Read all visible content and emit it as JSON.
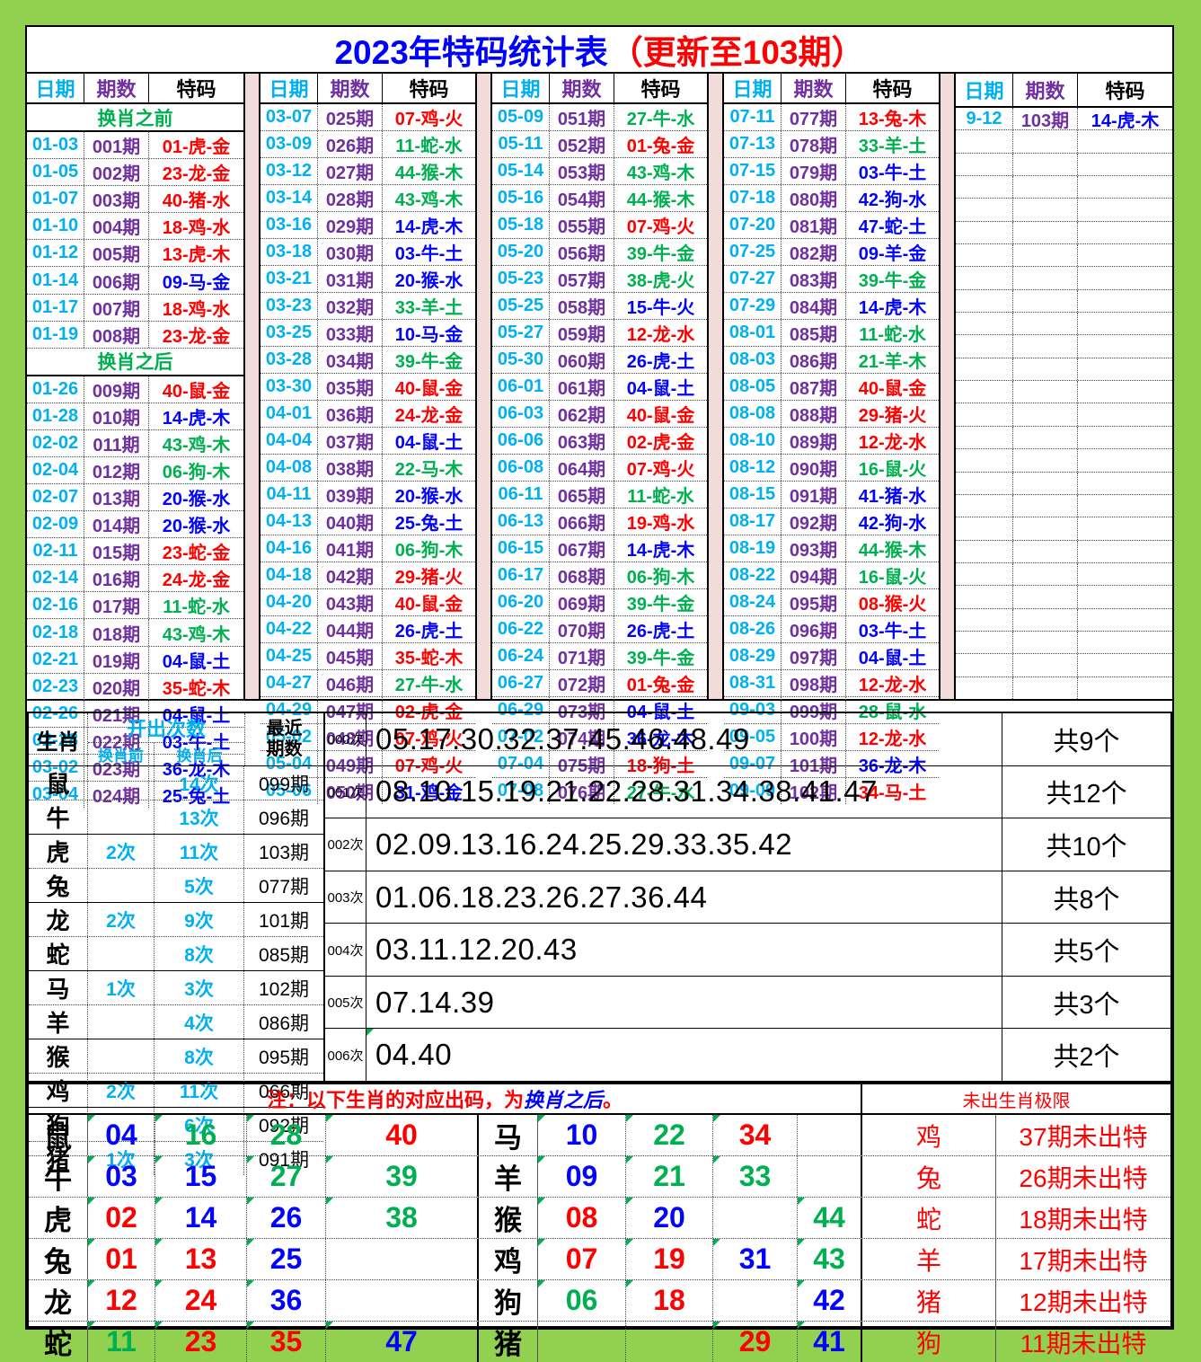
{
  "title": {
    "main": "2023年特码统计表",
    "suffix": "（更新至103期）"
  },
  "grid_header": {
    "date": "日期",
    "period": "期数",
    "code": "特码"
  },
  "colors": {
    "red": "#FF0000",
    "green": "#00B050",
    "blue": "#0202FF",
    "cyan": "#00B0F0",
    "purple": "#7030A0",
    "frame_green": "#92D050",
    "separator_pink": "#F1DCDB"
  },
  "period_tables": [
    {
      "rows": [
        {
          "banner": "换肖之前"
        },
        {
          "d": "01-03",
          "p": "001期",
          "t": "01-虎-金",
          "c": "r"
        },
        {
          "d": "01-05",
          "p": "002期",
          "t": "23-龙-金",
          "c": "r"
        },
        {
          "d": "01-07",
          "p": "003期",
          "t": "40-猪-水",
          "c": "r"
        },
        {
          "d": "01-10",
          "p": "004期",
          "t": "18-鸡-水",
          "c": "r"
        },
        {
          "d": "01-12",
          "p": "005期",
          "t": "13-虎-木",
          "c": "r"
        },
        {
          "d": "01-14",
          "p": "006期",
          "t": "09-马-金",
          "c": "b"
        },
        {
          "d": "01-17",
          "p": "007期",
          "t": "18-鸡-水",
          "c": "r"
        },
        {
          "d": "01-19",
          "p": "008期",
          "t": "23-龙-金",
          "c": "r"
        },
        {
          "banner": "换肖之后"
        },
        {
          "d": "01-26",
          "p": "009期",
          "t": "40-鼠-金",
          "c": "r"
        },
        {
          "d": "01-28",
          "p": "010期",
          "t": "14-虎-木",
          "c": "b"
        },
        {
          "d": "02-02",
          "p": "011期",
          "t": "43-鸡-木",
          "c": "g"
        },
        {
          "d": "02-04",
          "p": "012期",
          "t": "06-狗-木",
          "c": "g"
        },
        {
          "d": "02-07",
          "p": "013期",
          "t": "20-猴-水",
          "c": "b"
        },
        {
          "d": "02-09",
          "p": "014期",
          "t": "20-猴-水",
          "c": "b"
        },
        {
          "d": "02-11",
          "p": "015期",
          "t": "23-蛇-金",
          "c": "r"
        },
        {
          "d": "02-14",
          "p": "016期",
          "t": "24-龙-金",
          "c": "r"
        },
        {
          "d": "02-16",
          "p": "017期",
          "t": "11-蛇-水",
          "c": "g"
        },
        {
          "d": "02-18",
          "p": "018期",
          "t": "43-鸡-木",
          "c": "g"
        },
        {
          "d": "02-21",
          "p": "019期",
          "t": "04-鼠-土",
          "c": "b"
        },
        {
          "d": "02-23",
          "p": "020期",
          "t": "35-蛇-木",
          "c": "r"
        },
        {
          "d": "02-26",
          "p": "021期",
          "t": "04-鼠-土",
          "c": "b"
        },
        {
          "d": "02-28",
          "p": "022期",
          "t": "03-牛-土",
          "c": "b"
        },
        {
          "d": "03-02",
          "p": "023期",
          "t": "36-龙-木",
          "c": "b"
        },
        {
          "d": "03-04",
          "p": "024期",
          "t": "25-兔-土",
          "c": "b"
        }
      ]
    },
    {
      "rows": [
        {
          "d": "03-07",
          "p": "025期",
          "t": "07-鸡-火",
          "c": "r"
        },
        {
          "d": "03-09",
          "p": "026期",
          "t": "11-蛇-水",
          "c": "g"
        },
        {
          "d": "03-12",
          "p": "027期",
          "t": "44-猴-木",
          "c": "g"
        },
        {
          "d": "03-14",
          "p": "028期",
          "t": "43-鸡-木",
          "c": "g"
        },
        {
          "d": "03-16",
          "p": "029期",
          "t": "14-虎-木",
          "c": "b"
        },
        {
          "d": "03-18",
          "p": "030期",
          "t": "03-牛-土",
          "c": "b"
        },
        {
          "d": "03-21",
          "p": "031期",
          "t": "20-猴-水",
          "c": "b"
        },
        {
          "d": "03-23",
          "p": "032期",
          "t": "33-羊-土",
          "c": "g"
        },
        {
          "d": "03-25",
          "p": "033期",
          "t": "10-马-金",
          "c": "b"
        },
        {
          "d": "03-28",
          "p": "034期",
          "t": "39-牛-金",
          "c": "g"
        },
        {
          "d": "03-30",
          "p": "035期",
          "t": "40-鼠-金",
          "c": "r"
        },
        {
          "d": "04-01",
          "p": "036期",
          "t": "24-龙-金",
          "c": "r"
        },
        {
          "d": "04-04",
          "p": "037期",
          "t": "04-鼠-土",
          "c": "b"
        },
        {
          "d": "04-08",
          "p": "038期",
          "t": "22-马-木",
          "c": "g"
        },
        {
          "d": "04-11",
          "p": "039期",
          "t": "20-猴-水",
          "c": "b"
        },
        {
          "d": "04-13",
          "p": "040期",
          "t": "25-兔-土",
          "c": "b"
        },
        {
          "d": "04-16",
          "p": "041期",
          "t": "06-狗-木",
          "c": "g"
        },
        {
          "d": "04-18",
          "p": "042期",
          "t": "29-猪-火",
          "c": "r"
        },
        {
          "d": "04-20",
          "p": "043期",
          "t": "40-鼠-金",
          "c": "r"
        },
        {
          "d": "04-22",
          "p": "044期",
          "t": "26-虎-土",
          "c": "b"
        },
        {
          "d": "04-25",
          "p": "045期",
          "t": "35-蛇-木",
          "c": "r"
        },
        {
          "d": "04-27",
          "p": "046期",
          "t": "27-牛-水",
          "c": "g"
        },
        {
          "d": "04-29",
          "p": "047期",
          "t": "02-虎-金",
          "c": "r"
        },
        {
          "d": "05-02",
          "p": "048期",
          "t": "07-鸡-火",
          "c": "r"
        },
        {
          "d": "05-04",
          "p": "049期",
          "t": "07-鸡-火",
          "c": "r"
        },
        {
          "d": "05-06",
          "p": "050期",
          "t": "31-鸡-金",
          "c": "b"
        }
      ]
    },
    {
      "rows": [
        {
          "d": "05-09",
          "p": "051期",
          "t": "27-牛-水",
          "c": "g"
        },
        {
          "d": "05-11",
          "p": "052期",
          "t": "01-兔-金",
          "c": "r"
        },
        {
          "d": "05-14",
          "p": "053期",
          "t": "43-鸡-木",
          "c": "g"
        },
        {
          "d": "05-16",
          "p": "054期",
          "t": "44-猴-木",
          "c": "g"
        },
        {
          "d": "05-18",
          "p": "055期",
          "t": "07-鸡-火",
          "c": "r"
        },
        {
          "d": "05-20",
          "p": "056期",
          "t": "39-牛-金",
          "c": "g"
        },
        {
          "d": "05-23",
          "p": "057期",
          "t": "38-虎-火",
          "c": "g"
        },
        {
          "d": "05-25",
          "p": "058期",
          "t": "15-牛-火",
          "c": "b"
        },
        {
          "d": "05-27",
          "p": "059期",
          "t": "12-龙-水",
          "c": "r"
        },
        {
          "d": "05-30",
          "p": "060期",
          "t": "26-虎-土",
          "c": "b"
        },
        {
          "d": "06-01",
          "p": "061期",
          "t": "04-鼠-土",
          "c": "b"
        },
        {
          "d": "06-03",
          "p": "062期",
          "t": "40-鼠-金",
          "c": "r"
        },
        {
          "d": "06-06",
          "p": "063期",
          "t": "02-虎-金",
          "c": "r"
        },
        {
          "d": "06-08",
          "p": "064期",
          "t": "07-鸡-火",
          "c": "r"
        },
        {
          "d": "06-11",
          "p": "065期",
          "t": "11-蛇-水",
          "c": "g"
        },
        {
          "d": "06-13",
          "p": "066期",
          "t": "19-鸡-水",
          "c": "r"
        },
        {
          "d": "06-15",
          "p": "067期",
          "t": "14-虎-木",
          "c": "b"
        },
        {
          "d": "06-17",
          "p": "068期",
          "t": "06-狗-木",
          "c": "g"
        },
        {
          "d": "06-20",
          "p": "069期",
          "t": "39-牛-金",
          "c": "g"
        },
        {
          "d": "06-22",
          "p": "070期",
          "t": "26-虎-土",
          "c": "b"
        },
        {
          "d": "06-24",
          "p": "071期",
          "t": "39-牛-金",
          "c": "g"
        },
        {
          "d": "06-27",
          "p": "072期",
          "t": "01-兔-金",
          "c": "r"
        },
        {
          "d": "06-29",
          "p": "073期",
          "t": "04-鼠-土",
          "c": "b"
        },
        {
          "d": "07-02",
          "p": "074期",
          "t": "36-龙-木",
          "c": "b"
        },
        {
          "d": "07-04",
          "p": "075期",
          "t": "18-狗-土",
          "c": "r"
        },
        {
          "d": "07-08",
          "p": "076期",
          "t": "27-牛-水",
          "c": "g"
        }
      ]
    },
    {
      "rows": [
        {
          "d": "07-11",
          "p": "077期",
          "t": "13-兔-木",
          "c": "r"
        },
        {
          "d": "07-13",
          "p": "078期",
          "t": "33-羊-土",
          "c": "g"
        },
        {
          "d": "07-15",
          "p": "079期",
          "t": "03-牛-土",
          "c": "b"
        },
        {
          "d": "07-18",
          "p": "080期",
          "t": "42-狗-水",
          "c": "b"
        },
        {
          "d": "07-20",
          "p": "081期",
          "t": "47-蛇-土",
          "c": "b"
        },
        {
          "d": "07-25",
          "p": "082期",
          "t": "09-羊-金",
          "c": "b"
        },
        {
          "d": "07-27",
          "p": "083期",
          "t": "39-牛-金",
          "c": "g"
        },
        {
          "d": "07-29",
          "p": "084期",
          "t": "14-虎-木",
          "c": "b"
        },
        {
          "d": "08-01",
          "p": "085期",
          "t": "11-蛇-水",
          "c": "g"
        },
        {
          "d": "08-03",
          "p": "086期",
          "t": "21-羊-木",
          "c": "g"
        },
        {
          "d": "08-05",
          "p": "087期",
          "t": "40-鼠-金",
          "c": "r"
        },
        {
          "d": "08-08",
          "p": "088期",
          "t": "29-猪-火",
          "c": "r"
        },
        {
          "d": "08-10",
          "p": "089期",
          "t": "12-龙-水",
          "c": "r"
        },
        {
          "d": "08-12",
          "p": "090期",
          "t": "16-鼠-火",
          "c": "g"
        },
        {
          "d": "08-15",
          "p": "091期",
          "t": "41-猪-水",
          "c": "b"
        },
        {
          "d": "08-17",
          "p": "092期",
          "t": "42-狗-水",
          "c": "b"
        },
        {
          "d": "08-19",
          "p": "093期",
          "t": "44-猴-木",
          "c": "g"
        },
        {
          "d": "08-22",
          "p": "094期",
          "t": "16-鼠-火",
          "c": "g"
        },
        {
          "d": "08-24",
          "p": "095期",
          "t": "08-猴-火",
          "c": "r"
        },
        {
          "d": "08-26",
          "p": "096期",
          "t": "03-牛-土",
          "c": "b"
        },
        {
          "d": "08-29",
          "p": "097期",
          "t": "04-鼠-土",
          "c": "b"
        },
        {
          "d": "08-31",
          "p": "098期",
          "t": "12-龙-水",
          "c": "r"
        },
        {
          "d": "09-03",
          "p": "099期",
          "t": "28-鼠-水",
          "c": "g"
        },
        {
          "d": "09-05",
          "p": "100期",
          "t": "12-龙-水",
          "c": "r"
        },
        {
          "d": "09-07",
          "p": "101期",
          "t": "36-龙-木",
          "c": "b"
        },
        {
          "d": "09-09",
          "p": "102期",
          "t": "34-马-土",
          "c": "r"
        }
      ]
    },
    {
      "pad": 25,
      "rows": [
        {
          "d": "9-12",
          "p": "103期",
          "t": "14-虎-木",
          "c": "b"
        }
      ]
    }
  ],
  "stats": {
    "headers": {
      "zodiac": "生肖",
      "count_title": "开出次数",
      "before": "换肖前",
      "after": "换肖后",
      "recent1": "最近",
      "recent2": "期数"
    },
    "rows": [
      {
        "z": "鼠",
        "b": "",
        "a": "14次",
        "r": "099期"
      },
      {
        "z": "牛",
        "b": "",
        "a": "13次",
        "r": "096期"
      },
      {
        "z": "虎",
        "b": "2次",
        "a": "11次",
        "r": "103期"
      },
      {
        "z": "兔",
        "b": "",
        "a": "5次",
        "r": "077期"
      },
      {
        "z": "龙",
        "b": "2次",
        "a": "9次",
        "r": "101期"
      },
      {
        "z": "蛇",
        "b": "",
        "a": "8次",
        "r": "085期"
      },
      {
        "z": "马",
        "b": "1次",
        "a": "3次",
        "r": "102期"
      },
      {
        "z": "羊",
        "b": "",
        "a": "4次",
        "r": "086期"
      },
      {
        "z": "猴",
        "b": "",
        "a": "8次",
        "r": "095期"
      },
      {
        "z": "鸡",
        "b": "2次",
        "a": "11次",
        "r": "066期"
      },
      {
        "z": "狗",
        "b": "",
        "a": "6次",
        "r": "092期"
      },
      {
        "z": "猪",
        "b": "1次",
        "a": "3次",
        "r": "091期"
      }
    ]
  },
  "counts": {
    "rows": [
      {
        "label": "000次",
        "numbers": "05.17.30.32.37.45.46.48.49",
        "total": "共9个",
        "marked": false
      },
      {
        "label": "001次",
        "numbers": "08.10.15.19.21.22.28.31.34.38.41.47",
        "total": "共12个",
        "marked": false
      },
      {
        "label": "002次",
        "numbers": "02.09.13.16.24.25.29.33.35.42",
        "total": "共10个",
        "marked": false
      },
      {
        "label": "003次",
        "numbers": "01.06.18.23.26.27.36.44",
        "total": "共8个",
        "marked": false
      },
      {
        "label": "004次",
        "numbers": "03.11.12.20.43",
        "total": "共5个",
        "marked": false
      },
      {
        "label": "005次",
        "numbers": "07.14.39",
        "total": "共3个",
        "marked": false
      },
      {
        "label": "006次",
        "numbers": "04.40",
        "total": "共2个",
        "marked": true
      }
    ]
  },
  "bottom": {
    "note": {
      "prefix": "注：以下生肖的对应出码，为",
      "highlight": "换肖之后",
      "suffix": "。"
    },
    "limit_title": "未出生肖极限",
    "left_rows": [
      {
        "z": "鼠",
        "cells": [
          [
            "04",
            "b"
          ],
          [
            "16",
            "g"
          ],
          [
            "28",
            "g"
          ],
          [
            "40",
            "r"
          ]
        ]
      },
      {
        "z": "牛",
        "cells": [
          [
            "03",
            "b"
          ],
          [
            "15",
            "b"
          ],
          [
            "27",
            "g"
          ],
          [
            "39",
            "g"
          ]
        ]
      },
      {
        "z": "虎",
        "cells": [
          [
            "02",
            "r"
          ],
          [
            "14",
            "b"
          ],
          [
            "26",
            "b"
          ],
          [
            "38",
            "g"
          ]
        ]
      },
      {
        "z": "兔",
        "cells": [
          [
            "01",
            "r"
          ],
          [
            "13",
            "r"
          ],
          [
            "25",
            "b"
          ],
          [
            "",
            ""
          ]
        ]
      },
      {
        "z": "龙",
        "cells": [
          [
            "12",
            "r"
          ],
          [
            "24",
            "r"
          ],
          [
            "36",
            "b"
          ],
          [
            "",
            ""
          ]
        ]
      },
      {
        "z": "蛇",
        "cells": [
          [
            "11",
            "g"
          ],
          [
            "23",
            "r"
          ],
          [
            "35",
            "r"
          ],
          [
            "47",
            "b"
          ]
        ]
      }
    ],
    "right_rows": [
      {
        "z": "马",
        "cells": [
          [
            "10",
            "b"
          ],
          [
            "22",
            "g"
          ],
          [
            "34",
            "r"
          ],
          [
            "",
            ""
          ]
        ]
      },
      {
        "z": "羊",
        "cells": [
          [
            "09",
            "b"
          ],
          [
            "21",
            "g"
          ],
          [
            "33",
            "g"
          ],
          [
            "",
            ""
          ]
        ]
      },
      {
        "z": "猴",
        "cells": [
          [
            "08",
            "r"
          ],
          [
            "20",
            "b"
          ],
          [
            "",
            ""
          ],
          [
            "44",
            "g"
          ]
        ]
      },
      {
        "z": "鸡",
        "cells": [
          [
            "07",
            "r"
          ],
          [
            "19",
            "r"
          ],
          [
            "31",
            "b"
          ],
          [
            "43",
            "g"
          ]
        ]
      },
      {
        "z": "狗",
        "cells": [
          [
            "06",
            "g"
          ],
          [
            "18",
            "r"
          ],
          [
            "",
            ""
          ],
          [
            "42",
            "b"
          ]
        ]
      },
      {
        "z": "猪",
        "cells": [
          [
            "",
            ""
          ],
          [
            "",
            ""
          ],
          [
            "29",
            "r"
          ],
          [
            "41",
            "b"
          ]
        ]
      }
    ],
    "limits": [
      [
        "鸡",
        "37期未出特"
      ],
      [
        "兔",
        "26期未出特"
      ],
      [
        "蛇",
        "18期未出特"
      ],
      [
        "羊",
        "17期未出特"
      ],
      [
        "猪",
        "12期未出特"
      ],
      [
        "狗",
        "11期未出特"
      ]
    ]
  }
}
